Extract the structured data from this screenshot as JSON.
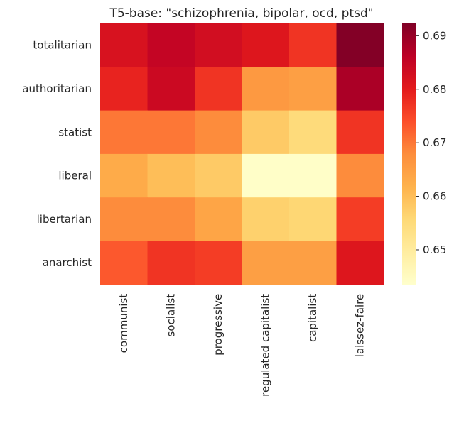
{
  "chart_data": {
    "type": "heatmap",
    "title": "T5-base: \"schizophrenia, bipolar, ocd, ptsd\"",
    "xlabel": "",
    "ylabel": "",
    "x_categories": [
      "communist",
      "socialist",
      "progressive",
      "regulated capitalist",
      "capitalist",
      "laissez-faire"
    ],
    "y_categories": [
      "totalitarian",
      "authoritarian",
      "statist",
      "liberal",
      "libertarian",
      "anarchist"
    ],
    "values": [
      [
        0.682,
        0.685,
        0.683,
        0.681,
        0.677,
        0.692
      ],
      [
        0.679,
        0.684,
        0.677,
        0.666,
        0.665,
        0.688
      ],
      [
        0.67,
        0.67,
        0.668,
        0.658,
        0.655,
        0.677
      ],
      [
        0.663,
        0.66,
        0.658,
        0.644,
        0.644,
        0.668
      ],
      [
        0.668,
        0.668,
        0.664,
        0.657,
        0.656,
        0.676
      ],
      [
        0.673,
        0.677,
        0.676,
        0.665,
        0.665,
        0.681
      ]
    ],
    "colorbar": {
      "min": 0.6435,
      "max": 0.6923,
      "ticks": [
        0.65,
        0.66,
        0.67,
        0.68,
        0.69
      ],
      "tick_labels": [
        "0.65",
        "0.66",
        "0.67",
        "0.68",
        "0.69"
      ]
    },
    "colormap": "YlOrRd",
    "colormap_stops": [
      "#ffffcc",
      "#ffeda0",
      "#fed976",
      "#feb24c",
      "#fd8d3c",
      "#fc4e2a",
      "#e31a1c",
      "#bd0026",
      "#800026"
    ],
    "grid": false
  }
}
